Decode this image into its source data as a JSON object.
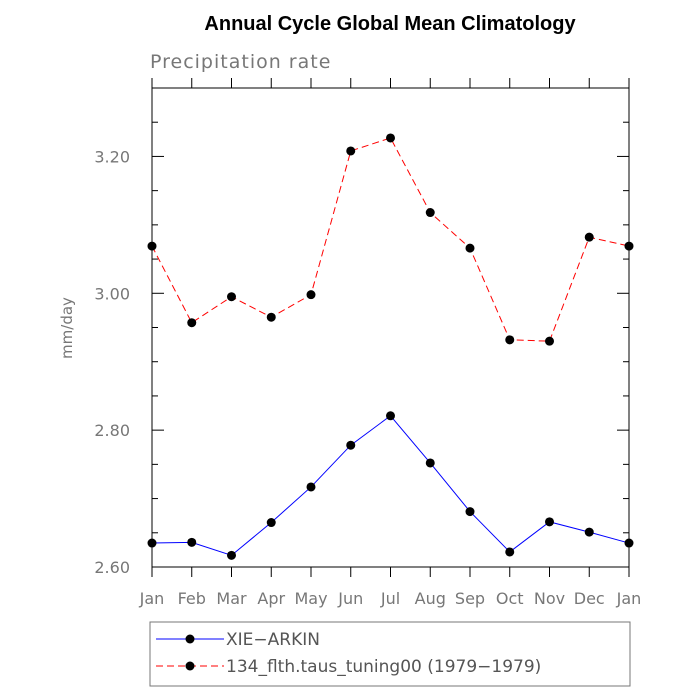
{
  "chart_data": {
    "type": "line",
    "title": "Annual Cycle Global Mean Climatology",
    "subtitle": "Precipitation rate",
    "xlabel": "",
    "ylabel": "mm/day",
    "categories": [
      "Jan",
      "Feb",
      "Mar",
      "Apr",
      "May",
      "Jun",
      "Jul",
      "Aug",
      "Sep",
      "Oct",
      "Nov",
      "Dec",
      "Jan"
    ],
    "ylim": [
      2.6,
      3.3
    ],
    "yticks": [
      "2.60",
      "2.80",
      "3.00",
      "3.20"
    ],
    "grid": false,
    "legend_position": "bottom",
    "series": [
      {
        "name": "XIE−ARKIN",
        "color": "#0000ff",
        "line_style": "solid",
        "marker": "filled-circle",
        "values": [
          2.635,
          2.636,
          2.617,
          2.665,
          2.717,
          2.778,
          2.821,
          2.752,
          2.681,
          2.622,
          2.666,
          2.651,
          2.635
        ]
      },
      {
        "name": "134_flth.taus_tuning00 (1979−1979)",
        "color": "#ff0000",
        "line_style": "dashed",
        "marker": "filled-circle",
        "values": [
          3.069,
          2.957,
          2.995,
          2.965,
          2.998,
          3.208,
          3.227,
          3.118,
          3.066,
          2.932,
          2.93,
          3.082,
          3.069
        ]
      }
    ]
  }
}
